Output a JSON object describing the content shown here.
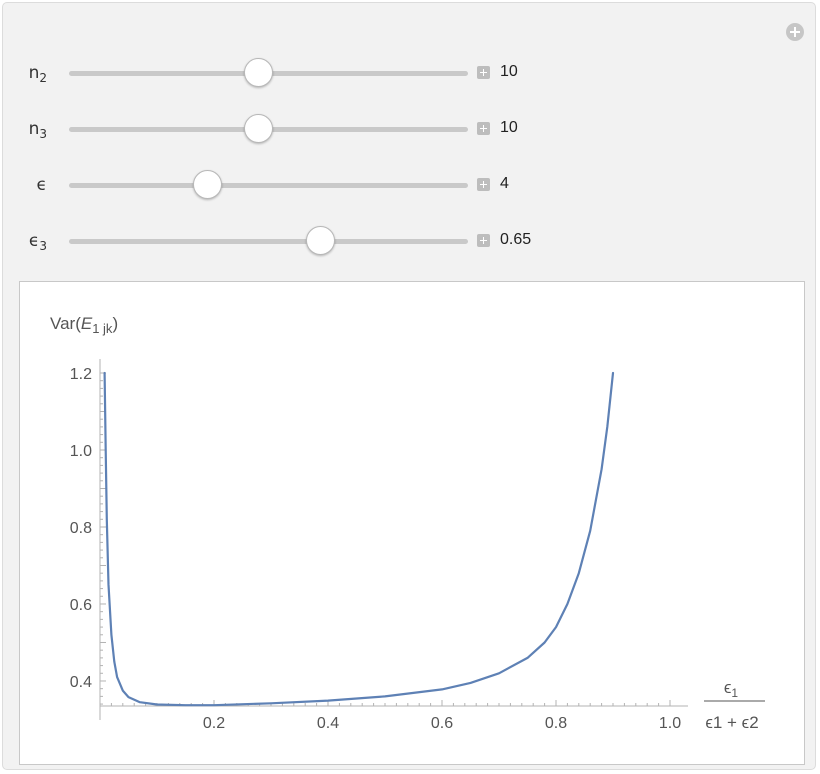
{
  "controls": [
    {
      "name": "n2",
      "base": "n",
      "sub": "2",
      "value_text": "10",
      "fraction": 0.476
    },
    {
      "name": "n3",
      "base": "n",
      "sub": "3",
      "value_text": "10",
      "fraction": 0.476
    },
    {
      "name": "epsilon",
      "base": "ϵ",
      "sub": "",
      "value_text": "4",
      "fraction": 0.348
    },
    {
      "name": "epsilon3",
      "base": "ϵ",
      "sub": "3",
      "value_text": "0.65",
      "fraction": 0.632
    }
  ],
  "chart_data": {
    "type": "line",
    "ylabel": "Var(E1 jk)",
    "ylabel_parts": {
      "pre": "Var(",
      "var": "E",
      "sub": "1 jk",
      "post": ")"
    },
    "xlabel": "ϵ1 / (ϵ1 + ϵ2)",
    "xlabel_parts": {
      "numerator": "ϵ",
      "numerator_sub": "1",
      "denominator": "ϵ1 + ϵ2"
    },
    "xlim": [
      0,
      1.0
    ],
    "ylim": [
      0.335,
      1.2
    ],
    "x_ticks": [
      "0.2",
      "0.4",
      "0.6",
      "0.8",
      "1.0"
    ],
    "y_ticks": [
      "0.4",
      "0.6",
      "0.8",
      "1.0",
      "1.2"
    ],
    "grid": false,
    "series": [
      {
        "color": "#5e81b5",
        "x": [
          0.008,
          0.01,
          0.012,
          0.015,
          0.02,
          0.025,
          0.03,
          0.04,
          0.05,
          0.07,
          0.1,
          0.15,
          0.2,
          0.3,
          0.4,
          0.5,
          0.6,
          0.65,
          0.7,
          0.75,
          0.78,
          0.8,
          0.82,
          0.84,
          0.86,
          0.88,
          0.89,
          0.9
        ],
        "y": [
          1.2,
          1.0,
          0.82,
          0.65,
          0.52,
          0.45,
          0.41,
          0.375,
          0.358,
          0.345,
          0.339,
          0.337,
          0.337,
          0.342,
          0.349,
          0.36,
          0.378,
          0.395,
          0.42,
          0.46,
          0.5,
          0.54,
          0.6,
          0.68,
          0.79,
          0.95,
          1.06,
          1.2
        ]
      }
    ]
  }
}
